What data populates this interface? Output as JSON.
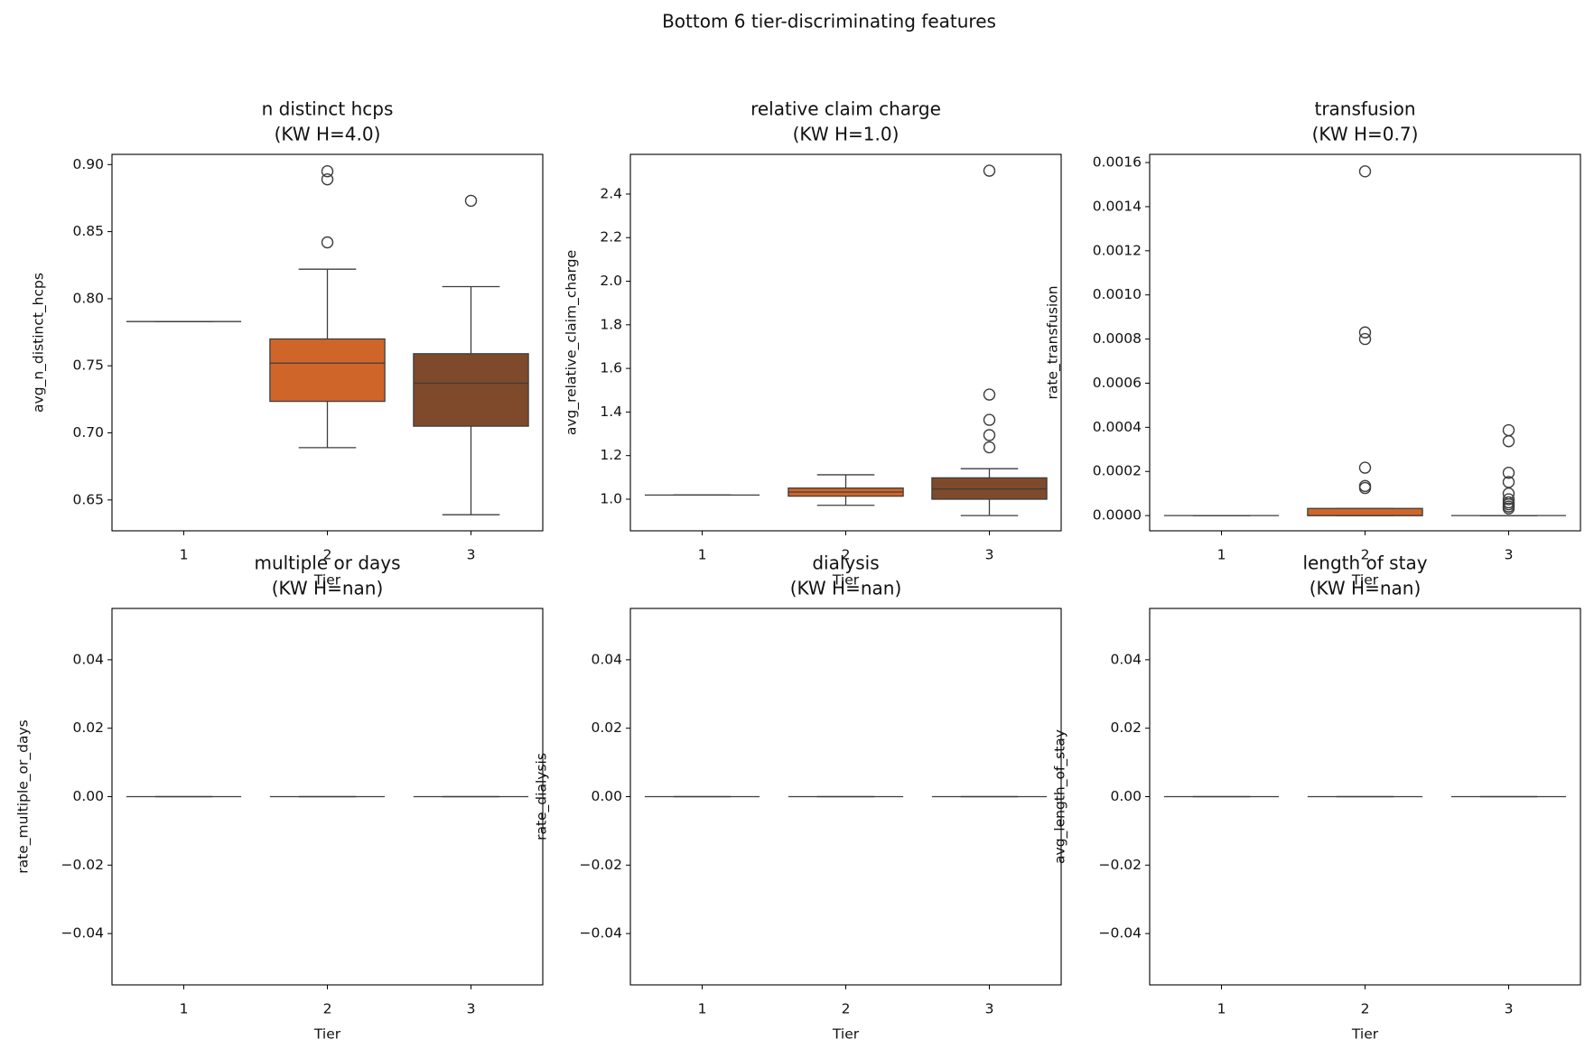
{
  "title": "Bottom 6 tier-discriminating features",
  "chart_data": [
    {
      "type": "box",
      "title": "n distinct hcps",
      "subtitle": "(KW H=4.0)",
      "x_label": "Tier",
      "y_label": "avg_n_distinct_hcps",
      "categories": [
        "1",
        "2",
        "3"
      ],
      "colors": [
        "#e07b39",
        "#d0652a",
        "#7f4a2b"
      ],
      "boxes": [
        {
          "min": 0.783,
          "q1": 0.783,
          "median": 0.783,
          "q3": 0.783,
          "max": 0.783,
          "outliers": []
        },
        {
          "min": 0.689,
          "q1": 0.7235,
          "median": 0.752,
          "q3": 0.77,
          "max": 0.822,
          "outliers": [
            0.895,
            0.889,
            0.842
          ]
        },
        {
          "min": 0.639,
          "q1": 0.705,
          "median": 0.737,
          "q3": 0.759,
          "max": 0.809,
          "outliers": [
            0.873
          ]
        }
      ],
      "ylim": [
        0.627,
        0.9076
      ],
      "yticks": [
        {
          "value": 0.65,
          "label": "0.65"
        },
        {
          "value": 0.7,
          "label": "0.70"
        },
        {
          "value": 0.75,
          "label": "0.75"
        },
        {
          "value": 0.8,
          "label": "0.80"
        },
        {
          "value": 0.85,
          "label": "0.85"
        },
        {
          "value": 0.9,
          "label": "0.90"
        }
      ]
    },
    {
      "type": "box",
      "title": "relative claim charge",
      "subtitle": "(KW H=1.0)",
      "x_label": "Tier",
      "y_label": "avg_relative_claim_charge",
      "categories": [
        "1",
        "2",
        "3"
      ],
      "colors": [
        "#e07b39",
        "#d0652a",
        "#7f4a2b"
      ],
      "boxes": [
        {
          "min": 1.019,
          "q1": 1.019,
          "median": 1.019,
          "q3": 1.019,
          "max": 1.019,
          "outliers": []
        },
        {
          "min": 0.972,
          "q1": 1.014,
          "median": 1.033,
          "q3": 1.051,
          "max": 1.112,
          "outliers": []
        },
        {
          "min": 0.925,
          "q1": 1.0,
          "median": 1.047,
          "q3": 1.098,
          "max": 1.14,
          "outliers": [
            2.507,
            1.48,
            1.364,
            1.294,
            1.238
          ]
        }
      ],
      "ylim": [
        0.855,
        2.582
      ],
      "yticks": [
        {
          "value": 1.0,
          "label": "1.0"
        },
        {
          "value": 1.2,
          "label": "1.2"
        },
        {
          "value": 1.4,
          "label": "1.4"
        },
        {
          "value": 1.6,
          "label": "1.6"
        },
        {
          "value": 1.8,
          "label": "1.8"
        },
        {
          "value": 2.0,
          "label": "2.0"
        },
        {
          "value": 2.2,
          "label": "2.2"
        },
        {
          "value": 2.4,
          "label": "2.4"
        }
      ]
    },
    {
      "type": "box",
      "title": "transfusion",
      "subtitle": "(KW H=0.7)",
      "x_label": "Tier",
      "y_label": "rate_transfusion",
      "categories": [
        "1",
        "2",
        "3"
      ],
      "colors": [
        "#e07b39",
        "#d0652a",
        "#7f4a2b"
      ],
      "boxes": [
        {
          "min": 0,
          "q1": 0,
          "median": 0,
          "q3": 0,
          "max": 0,
          "outliers": []
        },
        {
          "min": 0,
          "q1": 0,
          "median": 0,
          "q3": 3.23e-05,
          "max": 3.23e-05,
          "outliers": [
            0.00156,
            0.00083,
            0.0008,
            0.000217,
            0.000134,
            0.000125
          ]
        },
        {
          "min": 0,
          "q1": 0,
          "median": 0,
          "q3": 0,
          "max": 0,
          "outliers": [
            0.000387,
            0.000337,
            0.000194,
            0.000152,
            0.0001,
            7.4e-05,
            6e-05,
            5.1e-05,
            4.1e-05,
            3.2e-05
          ]
        }
      ],
      "ylim": [
        -6.9e-05,
        0.001637
      ],
      "yticks": [
        {
          "value": 0,
          "label": "0.0000"
        },
        {
          "value": 0.0002,
          "label": "0.0002"
        },
        {
          "value": 0.0004,
          "label": "0.0004"
        },
        {
          "value": 0.0006,
          "label": "0.0006"
        },
        {
          "value": 0.0008,
          "label": "0.0008"
        },
        {
          "value": 0.001,
          "label": "0.0010"
        },
        {
          "value": 0.0012,
          "label": "0.0012"
        },
        {
          "value": 0.0014,
          "label": "0.0014"
        },
        {
          "value": 0.0016,
          "label": "0.0016"
        }
      ]
    },
    {
      "type": "box",
      "title": "multiple or days",
      "subtitle": "(KW H=nan)",
      "x_label": "Tier",
      "y_label": "rate_multiple_or_days",
      "categories": [
        "1",
        "2",
        "3"
      ],
      "colors": [
        "#e07b39",
        "#d0652a",
        "#7f4a2b"
      ],
      "boxes": [
        {
          "min": 0,
          "q1": 0,
          "median": 0,
          "q3": 0,
          "max": 0,
          "outliers": []
        },
        {
          "min": 0,
          "q1": 0,
          "median": 0,
          "q3": 0,
          "max": 0,
          "outliers": []
        },
        {
          "min": 0,
          "q1": 0,
          "median": 0,
          "q3": 0,
          "max": 0,
          "outliers": []
        }
      ],
      "ylim": [
        -0.055,
        0.055
      ],
      "yticks": [
        {
          "value": -0.04,
          "label": "−0.04"
        },
        {
          "value": -0.02,
          "label": "−0.02"
        },
        {
          "value": 0,
          "label": "0.00"
        },
        {
          "value": 0.02,
          "label": "0.02"
        },
        {
          "value": 0.04,
          "label": "0.04"
        }
      ]
    },
    {
      "type": "box",
      "title": "dialysis",
      "subtitle": "(KW H=nan)",
      "x_label": "Tier",
      "y_label": "rate_dialysis",
      "categories": [
        "1",
        "2",
        "3"
      ],
      "colors": [
        "#e07b39",
        "#d0652a",
        "#7f4a2b"
      ],
      "boxes": [
        {
          "min": 0,
          "q1": 0,
          "median": 0,
          "q3": 0,
          "max": 0,
          "outliers": []
        },
        {
          "min": 0,
          "q1": 0,
          "median": 0,
          "q3": 0,
          "max": 0,
          "outliers": []
        },
        {
          "min": 0,
          "q1": 0,
          "median": 0,
          "q3": 0,
          "max": 0,
          "outliers": []
        }
      ],
      "ylim": [
        -0.055,
        0.055
      ],
      "yticks": [
        {
          "value": -0.04,
          "label": "−0.04"
        },
        {
          "value": -0.02,
          "label": "−0.02"
        },
        {
          "value": 0,
          "label": "0.00"
        },
        {
          "value": 0.02,
          "label": "0.02"
        },
        {
          "value": 0.04,
          "label": "0.04"
        }
      ]
    },
    {
      "type": "box",
      "title": "length of stay",
      "subtitle": "(KW H=nan)",
      "x_label": "Tier",
      "y_label": "avg_length_of_stay",
      "categories": [
        "1",
        "2",
        "3"
      ],
      "colors": [
        "#e07b39",
        "#d0652a",
        "#7f4a2b"
      ],
      "boxes": [
        {
          "min": 0,
          "q1": 0,
          "median": 0,
          "q3": 0,
          "max": 0,
          "outliers": []
        },
        {
          "min": 0,
          "q1": 0,
          "median": 0,
          "q3": 0,
          "max": 0,
          "outliers": []
        },
        {
          "min": 0,
          "q1": 0,
          "median": 0,
          "q3": 0,
          "max": 0,
          "outliers": []
        }
      ],
      "ylim": [
        -0.055,
        0.055
      ],
      "yticks": [
        {
          "value": -0.04,
          "label": "−0.04"
        },
        {
          "value": -0.02,
          "label": "−0.02"
        },
        {
          "value": 0,
          "label": "0.00"
        },
        {
          "value": 0.02,
          "label": "0.02"
        },
        {
          "value": 0.04,
          "label": "0.04"
        }
      ]
    }
  ]
}
